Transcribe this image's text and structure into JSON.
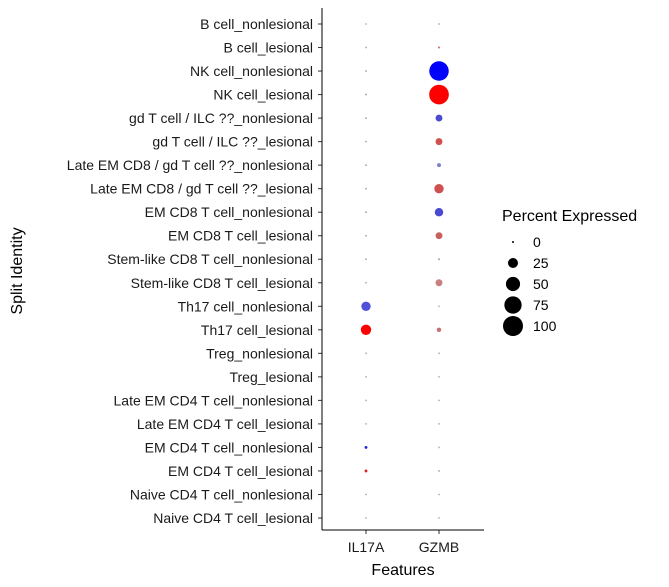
{
  "chart_data": {
    "type": "scatter",
    "subtype": "dot-plot",
    "xlabel": "Features",
    "ylabel": "Split Identity",
    "features": [
      "IL17A",
      "GZMB"
    ],
    "categories": [
      "B cell_nonlesional",
      "B cell_lesional",
      "NK cell_nonlesional",
      "NK cell_lesional",
      "gd T cell / ILC ??_nonlesional",
      "gd T cell / ILC ??_lesional",
      "Late EM CD8 / gd T cell ??_nonlesional",
      "Late EM CD8 / gd T cell ??_lesional",
      "EM CD8 T cell_nonlesional",
      "EM CD8 T cell_lesional",
      "Stem-like CD8 T cell_nonlesional",
      "Stem-like CD8 T cell_lesional",
      "Th17 cell_nonlesional",
      "Th17 cell_lesional",
      "Treg_nonlesional",
      "Treg_lesional",
      "Late EM CD4 T cell_nonlesional",
      "Late EM CD4 T cell_lesional",
      "EM CD4 T cell_nonlesional",
      "EM CD4 T cell_lesional",
      "Naive CD4 T cell_nonlesional",
      "Naive CD4 T cell_lesional"
    ],
    "legend": {
      "title": "Percent Expressed",
      "position": "right",
      "breaks": [
        0,
        25,
        50,
        75,
        100
      ]
    },
    "points": [
      {
        "category": "B cell_nonlesional",
        "feature": "IL17A",
        "pct": 0,
        "color": "#b0b0b0"
      },
      {
        "category": "B cell_nonlesional",
        "feature": "GZMB",
        "pct": 0.5,
        "color": "#c8a0a0"
      },
      {
        "category": "B cell_lesional",
        "feature": "IL17A",
        "pct": 0,
        "color": "#b0a0a0"
      },
      {
        "category": "B cell_lesional",
        "feature": "GZMB",
        "pct": 1,
        "color": "#e06060"
      },
      {
        "category": "NK cell_nonlesional",
        "feature": "IL17A",
        "pct": 0,
        "color": "#a0a0b0"
      },
      {
        "category": "NK cell_nonlesional",
        "feature": "GZMB",
        "pct": 95,
        "color": "#0000ff"
      },
      {
        "category": "NK cell_lesional",
        "feature": "IL17A",
        "pct": 0,
        "color": "#a0a0b0"
      },
      {
        "category": "NK cell_lesional",
        "feature": "GZMB",
        "pct": 97,
        "color": "#ff0000"
      },
      {
        "category": "gd T cell / ILC ??_nonlesional",
        "feature": "IL17A",
        "pct": 0,
        "color": "#a0a0b0"
      },
      {
        "category": "gd T cell / ILC ??_nonlesional",
        "feature": "GZMB",
        "pct": 12,
        "color": "#4a4ad0"
      },
      {
        "category": "gd T cell / ILC ??_lesional",
        "feature": "IL17A",
        "pct": 0,
        "color": "#b0a0a0"
      },
      {
        "category": "gd T cell / ILC ??_lesional",
        "feature": "GZMB",
        "pct": 12,
        "color": "#d05050"
      },
      {
        "category": "Late EM CD8 / gd T cell ??_nonlesional",
        "feature": "IL17A",
        "pct": 0,
        "color": "#a0a0b0"
      },
      {
        "category": "Late EM CD8 / gd T cell ??_nonlesional",
        "feature": "GZMB",
        "pct": 4,
        "color": "#8080d0"
      },
      {
        "category": "Late EM CD8 / gd T cell ??_lesional",
        "feature": "IL17A",
        "pct": 0,
        "color": "#b0a0a0"
      },
      {
        "category": "Late EM CD8 / gd T cell ??_lesional",
        "feature": "GZMB",
        "pct": 22,
        "color": "#d05050"
      },
      {
        "category": "EM CD8 T cell_nonlesional",
        "feature": "IL17A",
        "pct": 0,
        "color": "#a0a0b0"
      },
      {
        "category": "EM CD8 T cell_nonlesional",
        "feature": "GZMB",
        "pct": 18,
        "color": "#4a4ad0"
      },
      {
        "category": "EM CD8 T cell_lesional",
        "feature": "IL17A",
        "pct": 0,
        "color": "#b0a0a0"
      },
      {
        "category": "EM CD8 T cell_lesional",
        "feature": "GZMB",
        "pct": 12,
        "color": "#c86060"
      },
      {
        "category": "Stem-like CD8 T cell_nonlesional",
        "feature": "IL17A",
        "pct": 0,
        "color": "#a0a0b0"
      },
      {
        "category": "Stem-like CD8 T cell_nonlesional",
        "feature": "GZMB",
        "pct": 1,
        "color": "#a0a0b0"
      },
      {
        "category": "Stem-like CD8 T cell_lesional",
        "feature": "IL17A",
        "pct": 0,
        "color": "#b0a0a0"
      },
      {
        "category": "Stem-like CD8 T cell_lesional",
        "feature": "GZMB",
        "pct": 12,
        "color": "#c88080"
      },
      {
        "category": "Th17 cell_nonlesional",
        "feature": "IL17A",
        "pct": 22,
        "color": "#5050d8"
      },
      {
        "category": "Th17 cell_nonlesional",
        "feature": "GZMB",
        "pct": 0.5,
        "color": "#b0b0c0"
      },
      {
        "category": "Th17 cell_lesional",
        "feature": "IL17A",
        "pct": 27,
        "color": "#ff0000"
      },
      {
        "category": "Th17 cell_lesional",
        "feature": "GZMB",
        "pct": 5,
        "color": "#c87070"
      },
      {
        "category": "Treg_nonlesional",
        "feature": "IL17A",
        "pct": 0,
        "color": "#b0b0b0"
      },
      {
        "category": "Treg_nonlesional",
        "feature": "GZMB",
        "pct": 0,
        "color": "#b0b0b0"
      },
      {
        "category": "Treg_lesional",
        "feature": "IL17A",
        "pct": 0,
        "color": "#b0b0b0"
      },
      {
        "category": "Treg_lesional",
        "feature": "GZMB",
        "pct": 0,
        "color": "#b0b0b0"
      },
      {
        "category": "Late EM CD4 T cell_nonlesional",
        "feature": "IL17A",
        "pct": 0,
        "color": "#b0b0b0"
      },
      {
        "category": "Late EM CD4 T cell_nonlesional",
        "feature": "GZMB",
        "pct": 0.5,
        "color": "#b0b0b0"
      },
      {
        "category": "Late EM CD4 T cell_lesional",
        "feature": "IL17A",
        "pct": 0,
        "color": "#b0b0b0"
      },
      {
        "category": "Late EM CD4 T cell_lesional",
        "feature": "GZMB",
        "pct": 0.5,
        "color": "#b0b0b0"
      },
      {
        "category": "EM CD4 T cell_nonlesional",
        "feature": "IL17A",
        "pct": 2,
        "color": "#2020e0"
      },
      {
        "category": "EM CD4 T cell_nonlesional",
        "feature": "GZMB",
        "pct": 0.5,
        "color": "#b0b0b0"
      },
      {
        "category": "EM CD4 T cell_lesional",
        "feature": "IL17A",
        "pct": 2,
        "color": "#e02020"
      },
      {
        "category": "EM CD4 T cell_lesional",
        "feature": "GZMB",
        "pct": 0.5,
        "color": "#b0a0a0"
      },
      {
        "category": "Naive CD4 T cell_nonlesional",
        "feature": "IL17A",
        "pct": 0,
        "color": "#b0b0b0"
      },
      {
        "category": "Naive CD4 T cell_nonlesional",
        "feature": "GZMB",
        "pct": 0,
        "color": "#b0b0b0"
      },
      {
        "category": "Naive CD4 T cell_lesional",
        "feature": "IL17A",
        "pct": 0,
        "color": "#b0b0b0"
      },
      {
        "category": "Naive CD4 T cell_lesional",
        "feature": "GZMB",
        "pct": 0,
        "color": "#b0b0b0"
      }
    ]
  }
}
